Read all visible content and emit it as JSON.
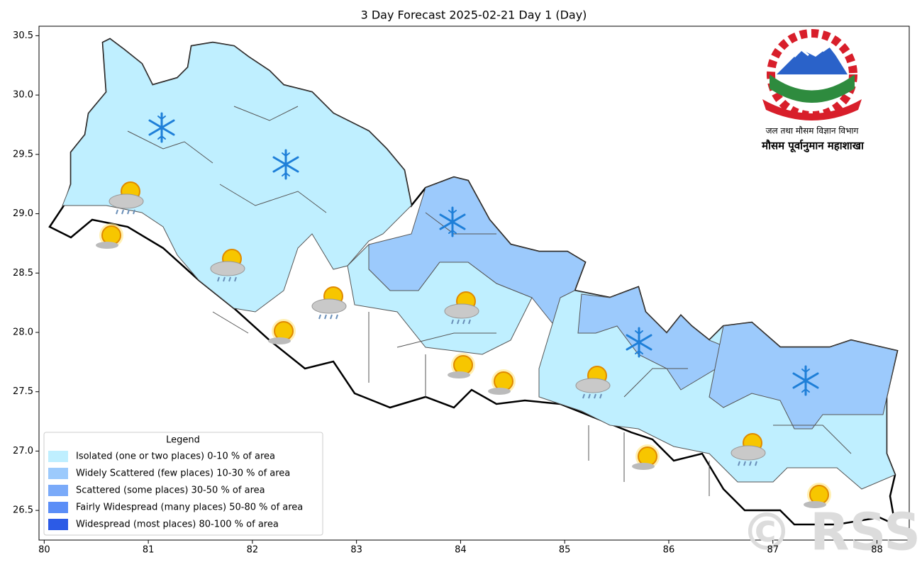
{
  "chart_data": {
    "type": "map",
    "title": "3 Day Forecast 2025-02-21 Day 1 (Day)",
    "xlim": [
      79.95,
      88.31
    ],
    "ylim": [
      26.25,
      30.58
    ],
    "xticks": [
      80,
      81,
      82,
      83,
      84,
      85,
      86,
      87,
      88
    ],
    "yticks": [
      26.5,
      {
        "value": 27,
        "label": "27.0"
      },
      27.5,
      {
        "value": 28,
        "label": "28.0"
      },
      28.5,
      {
        "value": 29,
        "label": "29.0"
      },
      29.5,
      {
        "value": 30,
        "label": "30.0"
      },
      30.5
    ],
    "legend": {
      "title": "Legend",
      "position": "lower left",
      "entries": [
        {
          "name": "Isolated (one or two places)  0-10 % of area",
          "color": "#bfefff"
        },
        {
          "name": "Widely Scattered (few places) 10-30 % of area",
          "color": "#9ccafc"
        },
        {
          "name": "Scattered (some places) 30-50  % of area",
          "color": "#7aaaf9"
        },
        {
          "name": "Fairly Widespread (many places) 50-80 % of area",
          "color": "#5b8ef7"
        },
        {
          "name": "Widespread (most places) 80-100 % of area",
          "color": "#2c5be6"
        }
      ]
    }
  },
  "logo": {
    "lines": [
      "जल तथा मौसम विज्ञान विभाग",
      "मौसम पूर्वानुमान महाशाखा"
    ]
  },
  "watermark": "© RSS"
}
